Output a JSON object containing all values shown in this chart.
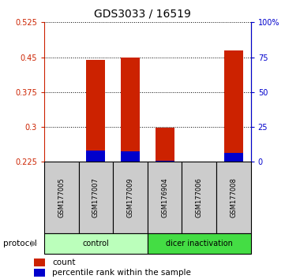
{
  "title": "GDS3033 / 16519",
  "samples": [
    "GSM177005",
    "GSM177007",
    "GSM177009",
    "GSM176904",
    "GSM177006",
    "GSM177008"
  ],
  "groups": [
    "control",
    "control",
    "control",
    "dicer inactivation",
    "dicer inactivation",
    "dicer inactivation"
  ],
  "count_values": [
    0.225,
    0.444,
    0.45,
    0.298,
    0.225,
    0.464
  ],
  "percentile_values": [
    0.225,
    0.25,
    0.248,
    0.228,
    0.225,
    0.245
  ],
  "ylim": [
    0.225,
    0.525
  ],
  "yticks_left": [
    0.225,
    0.3,
    0.375,
    0.45,
    0.525
  ],
  "yticks_right": [
    0,
    25,
    50,
    75,
    100
  ],
  "ytick_right_labels": [
    "0",
    "25",
    "50",
    "75",
    "100%"
  ],
  "bar_color_red": "#cc2200",
  "bar_color_blue": "#0000cc",
  "control_color": "#bbffbb",
  "dicer_color": "#44dd44",
  "sample_box_color": "#cccccc",
  "bar_width": 0.55
}
